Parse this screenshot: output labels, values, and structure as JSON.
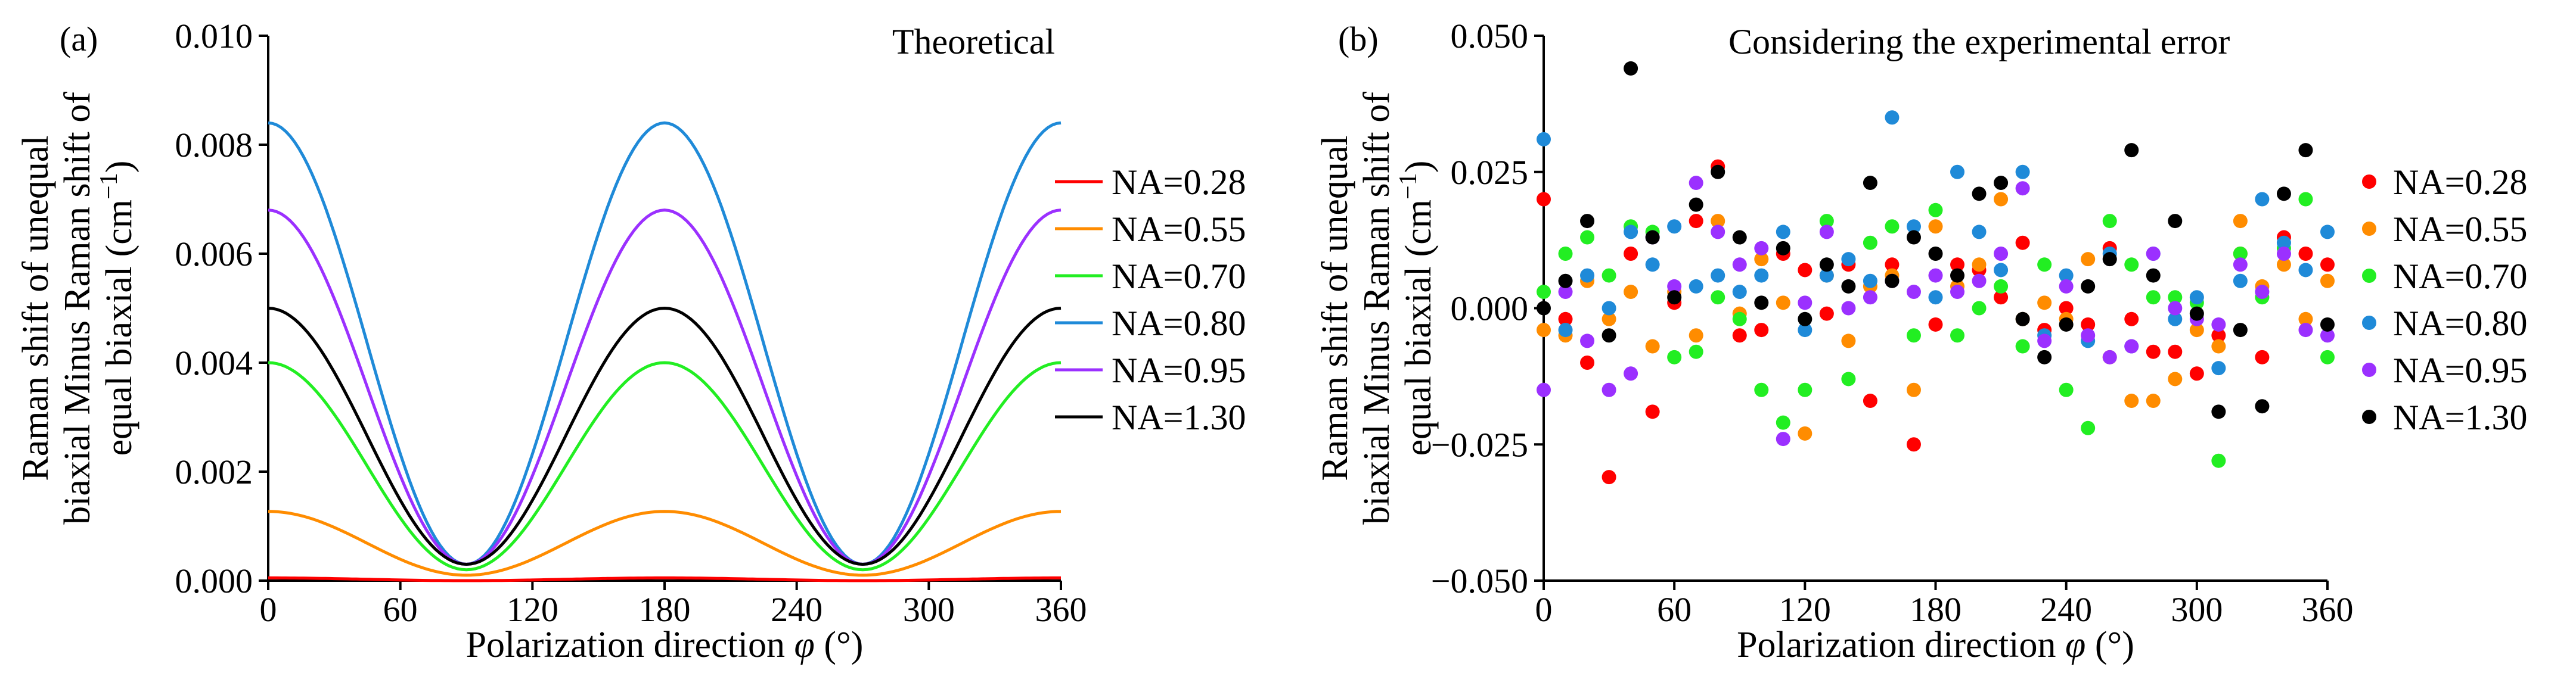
{
  "chart_data": [
    {
      "type": "line",
      "panel_label": "(a)",
      "title": "Theoretical",
      "xlabel": "Polarization direction",
      "xlabel_symbol": "φ",
      "xlabel_unit": " (°)",
      "ylabel_lines": [
        "Raman shift of unequal",
        "biaxial Minus Raman shift of",
        "equal biaxial (cm",
        ")"
      ],
      "ylabel_superscript": "−1",
      "xlim": [
        0,
        360
      ],
      "ylim": [
        0,
        0.01
      ],
      "xticks": [
        0,
        60,
        120,
        180,
        240,
        300,
        360
      ],
      "yticks": [
        "0.000",
        "0.002",
        "0.004",
        "0.006",
        "0.008",
        "0.010"
      ],
      "legend_position": "right",
      "grid": false,
      "model": "a*cos^2(phi)+b (peaks at 0/180/360, minimum near 90/270)",
      "series": [
        {
          "name": "NA=0.28",
          "color": "#ff0000",
          "peak": 5e-05,
          "min": 0.0
        },
        {
          "name": "NA=0.55",
          "color": "#ff8c00",
          "peak": 0.00127,
          "min": 0.0001
        },
        {
          "name": "NA=0.70",
          "color": "#22ee22",
          "peak": 0.004,
          "min": 0.0002
        },
        {
          "name": "NA=0.80",
          "color": "#1f8ad8",
          "peak": 0.0084,
          "min": 0.0003
        },
        {
          "name": "NA=0.95",
          "color": "#9b30ff",
          "peak": 0.0068,
          "min": 0.0003
        },
        {
          "name": "NA=1.30",
          "color": "#000000",
          "peak": 0.005,
          "min": 0.0003
        }
      ]
    },
    {
      "type": "scatter",
      "panel_label": "(b)",
      "title": "Considering the experimental error",
      "xlabel": "Polarization direction",
      "xlabel_symbol": "φ",
      "xlabel_unit": " (°)",
      "ylabel_lines": [
        "Raman shift of unequal",
        "biaxial Minus Raman shift of",
        "equal biaxial (cm",
        ")"
      ],
      "ylabel_superscript": "−1",
      "xlim": [
        0,
        360
      ],
      "ylim": [
        -0.05,
        0.05
      ],
      "xticks": [
        0,
        60,
        120,
        180,
        240,
        300,
        360
      ],
      "yticks": [
        "−0.050",
        "−0.025",
        "0.000",
        "0.025",
        "0.050"
      ],
      "legend_position": "right",
      "grid": false,
      "series": [
        {
          "name": "NA=0.28",
          "color": "#ff0000",
          "x": [
            0,
            10,
            20,
            30,
            40,
            50,
            60,
            70,
            80,
            90,
            100,
            110,
            120,
            130,
            140,
            150,
            160,
            170,
            180,
            190,
            200,
            210,
            220,
            230,
            240,
            250,
            260,
            270,
            280,
            290,
            300,
            310,
            320,
            330,
            340,
            350,
            360
          ],
          "y": [
            0.02,
            -0.002,
            -0.01,
            -0.031,
            0.01,
            -0.019,
            0.001,
            0.016,
            0.026,
            -0.005,
            -0.004,
            0.01,
            0.007,
            -0.001,
            0.008,
            -0.017,
            0.008,
            -0.025,
            -0.003,
            0.008,
            0.007,
            0.002,
            0.012,
            -0.004,
            0.0,
            -0.003,
            0.011,
            -0.002,
            -0.008,
            -0.008,
            -0.012,
            -0.005,
            0.01,
            -0.009,
            0.013,
            0.01,
            0.008
          ]
        },
        {
          "name": "NA=0.55",
          "color": "#ff8c00",
          "x": [
            0,
            10,
            20,
            30,
            40,
            50,
            60,
            70,
            80,
            90,
            100,
            110,
            120,
            130,
            140,
            150,
            160,
            170,
            180,
            190,
            200,
            210,
            220,
            230,
            240,
            250,
            260,
            270,
            280,
            290,
            300,
            310,
            320,
            330,
            340,
            350,
            360
          ],
          "y": [
            -0.004,
            -0.005,
            0.005,
            -0.002,
            0.003,
            -0.007,
            0.003,
            -0.005,
            0.016,
            -0.001,
            0.009,
            0.001,
            -0.023,
            0.006,
            -0.006,
            0.004,
            0.006,
            -0.015,
            0.015,
            0.004,
            0.008,
            0.02,
            -0.002,
            0.001,
            -0.002,
            0.009,
            -0.009,
            -0.017,
            -0.017,
            -0.013,
            -0.004,
            -0.007,
            0.016,
            0.004,
            0.008,
            -0.002,
            0.005
          ]
        },
        {
          "name": "NA=0.70",
          "color": "#22ee22",
          "x": [
            0,
            10,
            20,
            30,
            40,
            50,
            60,
            70,
            80,
            90,
            100,
            110,
            120,
            130,
            140,
            150,
            160,
            170,
            180,
            190,
            200,
            210,
            220,
            230,
            240,
            250,
            260,
            270,
            280,
            290,
            300,
            310,
            320,
            330,
            340,
            350,
            360
          ],
          "y": [
            0.003,
            0.01,
            0.013,
            0.006,
            0.015,
            0.014,
            -0.009,
            -0.008,
            0.002,
            -0.002,
            -0.015,
            -0.021,
            -0.015,
            0.016,
            -0.013,
            0.012,
            0.015,
            -0.005,
            0.018,
            -0.005,
            0.0,
            0.004,
            -0.007,
            0.008,
            -0.015,
            -0.022,
            0.016,
            0.008,
            0.002,
            0.002,
            0.001,
            -0.028,
            0.01,
            0.002,
            0.011,
            0.02,
            -0.009
          ]
        },
        {
          "name": "NA=0.80",
          "color": "#1f8ad8",
          "x": [
            0,
            10,
            20,
            30,
            40,
            50,
            60,
            70,
            80,
            90,
            100,
            110,
            120,
            130,
            140,
            150,
            160,
            170,
            180,
            190,
            200,
            210,
            220,
            230,
            240,
            250,
            260,
            270,
            280,
            290,
            300,
            310,
            320,
            330,
            340,
            350,
            360
          ],
          "y": [
            0.031,
            -0.004,
            0.006,
            0.0,
            0.014,
            0.008,
            0.015,
            0.004,
            0.006,
            0.003,
            0.006,
            0.014,
            -0.004,
            0.006,
            0.009,
            0.005,
            0.035,
            0.015,
            0.002,
            0.025,
            0.014,
            0.007,
            0.025,
            -0.005,
            0.006,
            -0.006,
            0.01,
            -0.007,
            0.01,
            -0.002,
            0.002,
            -0.011,
            0.005,
            0.02,
            0.012,
            0.007,
            0.014
          ]
        },
        {
          "name": "NA=0.95",
          "color": "#9b30ff",
          "x": [
            0,
            10,
            20,
            30,
            40,
            50,
            60,
            70,
            80,
            90,
            100,
            110,
            120,
            130,
            140,
            150,
            160,
            170,
            180,
            190,
            200,
            210,
            220,
            230,
            240,
            250,
            260,
            270,
            280,
            290,
            300,
            310,
            320,
            330,
            340,
            350,
            360
          ],
          "y": [
            -0.015,
            0.003,
            -0.006,
            -0.015,
            -0.012,
            0.013,
            0.004,
            0.023,
            0.014,
            0.008,
            0.011,
            -0.024,
            0.001,
            0.014,
            0.0,
            0.002,
            0.005,
            0.003,
            0.006,
            0.003,
            0.005,
            0.01,
            0.022,
            -0.006,
            0.004,
            -0.005,
            -0.009,
            -0.007,
            0.01,
            0.0,
            -0.002,
            -0.003,
            0.008,
            0.003,
            0.01,
            -0.004,
            -0.005
          ]
        },
        {
          "name": "NA=1.30",
          "color": "#000000",
          "x": [
            0,
            10,
            20,
            30,
            40,
            50,
            60,
            70,
            80,
            90,
            100,
            110,
            120,
            130,
            140,
            150,
            160,
            170,
            180,
            190,
            200,
            210,
            220,
            230,
            240,
            250,
            260,
            270,
            280,
            290,
            300,
            310,
            320,
            330,
            340,
            350,
            360
          ],
          "y": [
            0.0,
            0.005,
            0.016,
            -0.005,
            0.044,
            0.013,
            0.002,
            0.019,
            0.025,
            0.013,
            0.001,
            0.011,
            -0.002,
            0.008,
            0.004,
            0.023,
            0.005,
            0.013,
            0.01,
            0.006,
            0.021,
            0.023,
            -0.002,
            -0.009,
            -0.003,
            0.004,
            0.009,
            0.029,
            0.006,
            0.016,
            -0.001,
            -0.019,
            -0.004,
            -0.018,
            0.021,
            0.029,
            -0.003
          ]
        }
      ]
    }
  ]
}
